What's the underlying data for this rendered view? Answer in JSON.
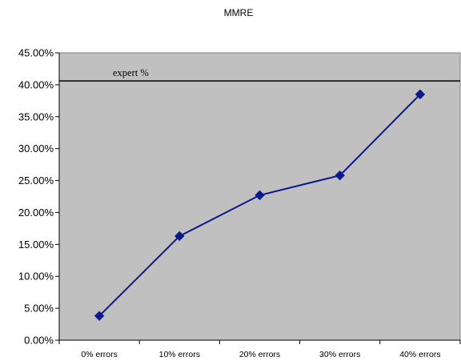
{
  "chart_data": {
    "type": "line",
    "title": "MMRE",
    "categories": [
      "0% errors",
      "10% errors",
      "20% errors",
      "30% errors",
      "40% errors"
    ],
    "series": [
      {
        "values": [
          3.8,
          16.3,
          22.7,
          25.8,
          38.5
        ],
        "color": "#0a1a8c",
        "marker": "diamond"
      }
    ],
    "reference_line": {
      "label": "expert %",
      "value": 40.6,
      "color": "#000000"
    },
    "ylim": [
      0,
      45
    ],
    "yticks": [
      0,
      5,
      10,
      15,
      20,
      25,
      30,
      35,
      40,
      45
    ],
    "ytick_labels": [
      "0.00%",
      "5.00%",
      "10.00%",
      "15.00%",
      "20.00%",
      "25.00%",
      "30.00%",
      "35.00%",
      "40.00%",
      "45.00%"
    ],
    "plot_background": "#c0c0c0",
    "grid": false,
    "legend": "none"
  }
}
